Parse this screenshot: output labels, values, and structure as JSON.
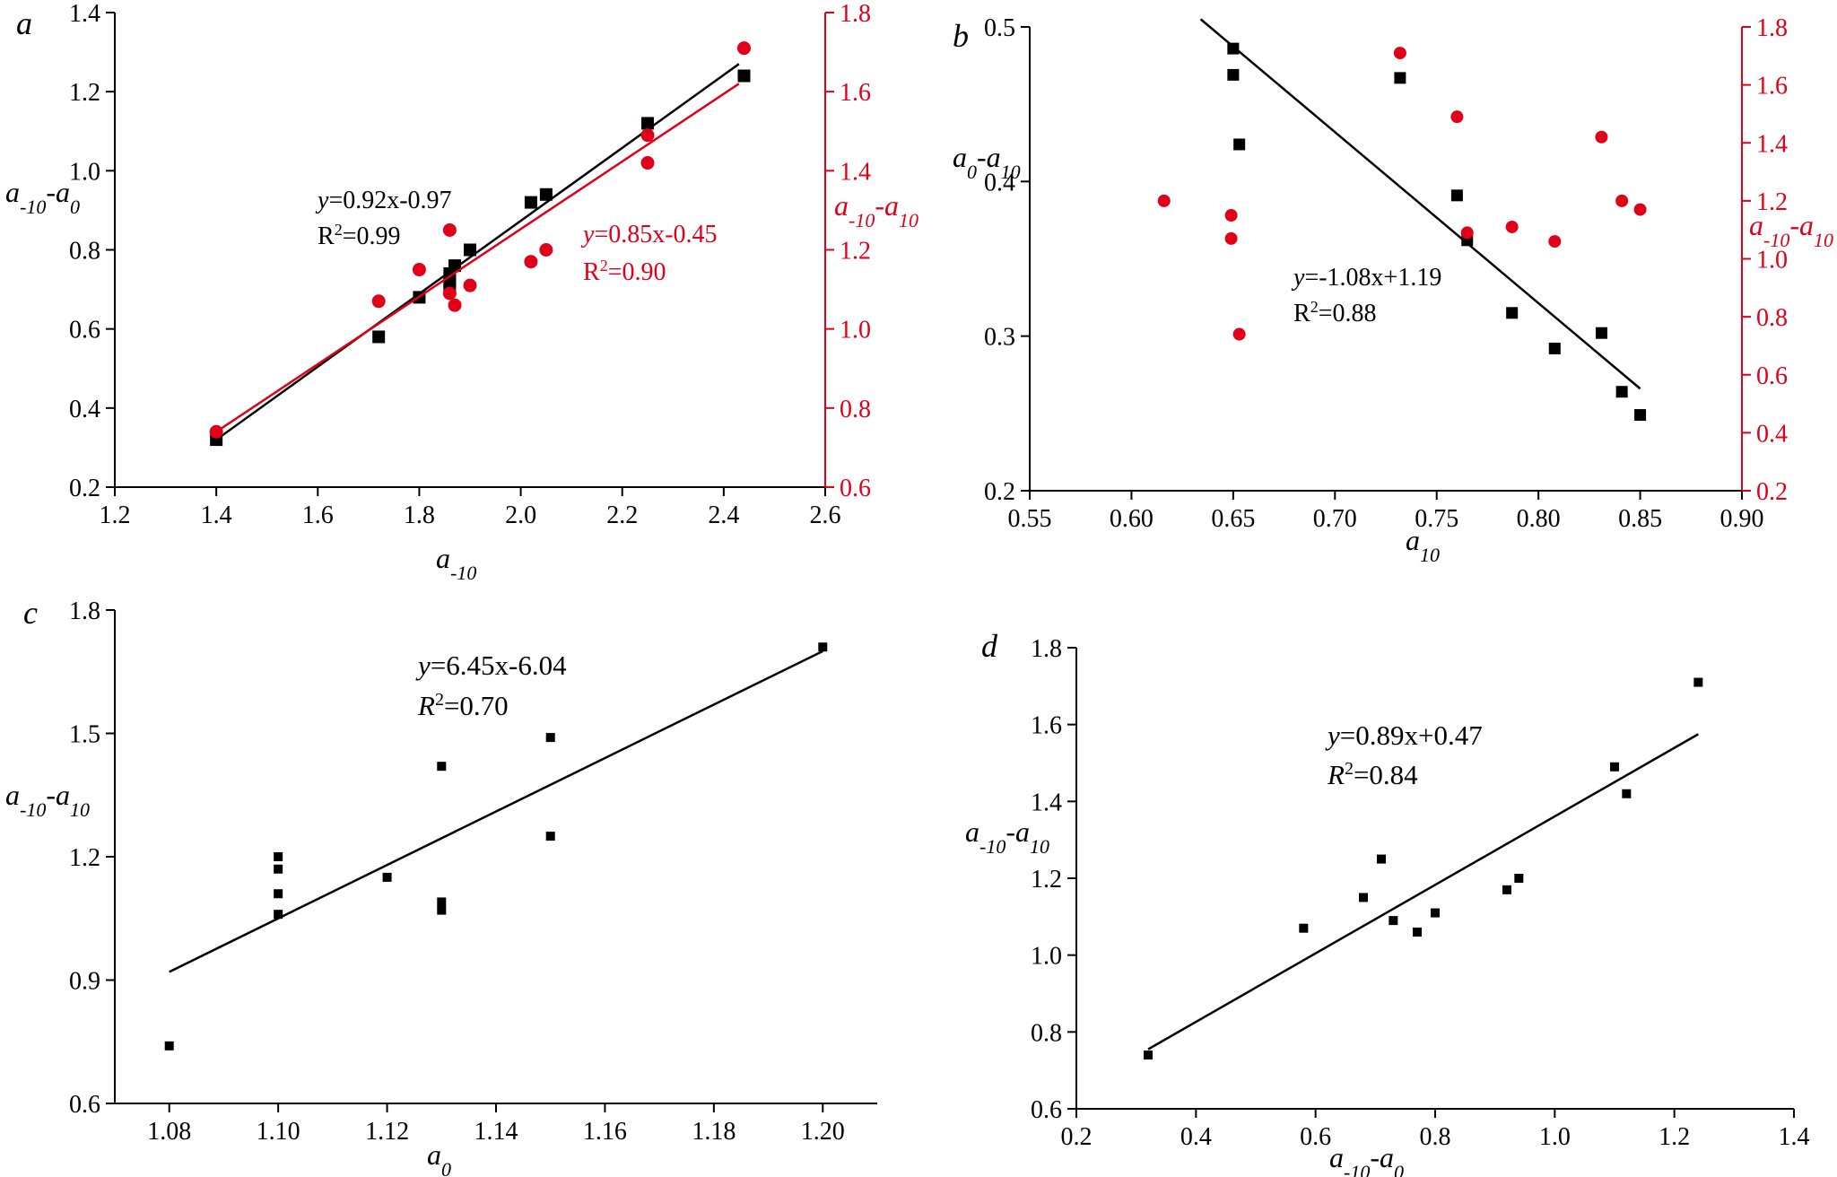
{
  "colors": {
    "primary": "#000000",
    "secondary": "#e0001a"
  },
  "chart_data": [
    {
      "id": "a",
      "type": "scatter",
      "panel_letter": "a",
      "xlabel": "a-10",
      "ylabel": "a-10-a0",
      "ylabel_right": "a-10-a10",
      "xlim": [
        1.2,
        2.6
      ],
      "ylim": [
        0.2,
        1.4
      ],
      "ylim_right": [
        0.6,
        1.8
      ],
      "xticks": [
        "1.2",
        "1.4",
        "1.6",
        "1.8",
        "2.0",
        "2.2",
        "2.4",
        "2.6"
      ],
      "yticks": [
        "0.2",
        "0.4",
        "0.6",
        "0.8",
        "1.0",
        "1.2",
        "1.4"
      ],
      "yticks_right": [
        "0.6",
        "0.8",
        "1.0",
        "1.2",
        "1.4",
        "1.6",
        "1.8"
      ],
      "series": [
        {
          "name": "a-10-a0",
          "axis": "left",
          "marker": "square",
          "color": "#000000",
          "x": [
            1.4,
            1.72,
            1.8,
            1.86,
            1.86,
            1.86,
            1.87,
            1.9,
            2.02,
            2.05,
            2.25,
            2.44
          ],
          "y": [
            0.32,
            0.58,
            0.68,
            0.71,
            0.72,
            0.74,
            0.76,
            0.8,
            0.92,
            0.94,
            1.12,
            1.24
          ],
          "fit": {
            "x": [
              1.4,
              2.43
            ],
            "y": [
              0.32,
              1.27
            ],
            "equation_prefix": "y",
            "equation_suffix": "=0.92x-0.97",
            "r2_prefix": "R",
            "r2_suffix": "=0.99"
          }
        },
        {
          "name": "a-10-a10",
          "axis": "right",
          "marker": "circle",
          "color": "#e0001a",
          "x": [
            1.4,
            1.72,
            1.8,
            1.86,
            1.86,
            1.87,
            1.9,
            2.02,
            2.05,
            2.25,
            2.25,
            2.44
          ],
          "y": [
            0.74,
            1.07,
            1.15,
            1.25,
            1.09,
            1.06,
            1.11,
            1.17,
            1.2,
            1.49,
            1.42,
            1.71
          ],
          "fit": {
            "x": [
              1.4,
              2.43
            ],
            "y": [
              0.74,
              1.62
            ],
            "equation_prefix": "y",
            "equation_suffix": "=0.85x-0.45",
            "r2_prefix": "R",
            "r2_suffix": "=0.90"
          }
        }
      ]
    },
    {
      "id": "b",
      "type": "scatter",
      "panel_letter": "b",
      "xlabel": "a10",
      "ylabel": "a0-a10",
      "ylabel_right": "a-10-a10",
      "xlim": [
        0.55,
        0.9
      ],
      "ylim": [
        0.2,
        0.5
      ],
      "ylim_right": [
        0.2,
        1.8
      ],
      "xticks": [
        "0.55",
        "0.60",
        "0.65",
        "0.70",
        "0.75",
        "0.80",
        "0.85",
        "0.90"
      ],
      "yticks": [
        "0.2",
        "0.3",
        "0.4",
        "0.5"
      ],
      "yticks_right": [
        "0.2",
        "0.4",
        "0.6",
        "0.8",
        "1.0",
        "1.2",
        "1.4",
        "1.6",
        "1.8"
      ],
      "series": [
        {
          "name": "a0-a10",
          "axis": "left",
          "marker": "square",
          "color": "#000000",
          "x": [
            0.65,
            0.65,
            0.653,
            0.732,
            0.76,
            0.765,
            0.787,
            0.808,
            0.831,
            0.841,
            0.85
          ],
          "y": [
            0.486,
            0.469,
            0.424,
            0.467,
            0.391,
            0.362,
            0.315,
            0.292,
            0.302,
            0.264,
            0.249
          ],
          "fit": {
            "x": [
              0.634,
              0.85
            ],
            "y": [
              0.505,
              0.266
            ],
            "equation_prefix": "y",
            "equation_suffix": "=-1.08x+1.19",
            "r2_prefix": "R",
            "r2_suffix": "=0.88"
          }
        },
        {
          "name": "a-10-a10",
          "axis": "right",
          "marker": "circle",
          "color": "#e0001a",
          "x": [
            0.616,
            0.649,
            0.649,
            0.653,
            0.732,
            0.76,
            0.765,
            0.787,
            0.808,
            0.831,
            0.841,
            0.85
          ],
          "y": [
            1.2,
            1.15,
            1.07,
            0.74,
            1.71,
            1.49,
            1.09,
            1.11,
            1.06,
            1.42,
            1.2,
            1.17
          ]
        }
      ]
    },
    {
      "id": "c",
      "type": "scatter",
      "panel_letter": "c",
      "xlabel": "a0",
      "ylabel": "a-10-a10",
      "xlim": [
        1.07,
        1.21
      ],
      "ylim": [
        0.6,
        1.8
      ],
      "xticks": [
        "1.08",
        "1.10",
        "1.12",
        "1.14",
        "1.16",
        "1.18",
        "1.20"
      ],
      "yticks": [
        "0.6",
        "0.9",
        "1.2",
        "1.5",
        "1.8"
      ],
      "series": [
        {
          "name": "a-10-a10",
          "axis": "left",
          "marker": "square",
          "color": "#000000",
          "x": [
            1.08,
            1.1,
            1.1,
            1.1,
            1.1,
            1.12,
            1.13,
            1.13,
            1.13,
            1.15,
            1.15,
            1.2
          ],
          "y": [
            0.74,
            1.2,
            1.17,
            1.11,
            1.06,
            1.15,
            1.42,
            1.09,
            1.07,
            1.49,
            1.25,
            1.71
          ],
          "fit": {
            "x": [
              1.08,
              1.2
            ],
            "y": [
              0.92,
              1.7
            ],
            "equation_prefix": "y",
            "equation_suffix": "=6.45x-6.04",
            "r2_prefix": "R",
            "r2_suffix": "=0.70"
          }
        }
      ]
    },
    {
      "id": "d",
      "type": "scatter",
      "panel_letter": "d",
      "xlabel": "a-10-a0",
      "ylabel": "a-10-a10",
      "xlim": [
        0.2,
        1.4
      ],
      "ylim": [
        0.6,
        1.8
      ],
      "xticks": [
        "0.2",
        "0.4",
        "0.6",
        "0.8",
        "1.0",
        "1.2",
        "1.4"
      ],
      "yticks": [
        "0.6",
        "0.8",
        "1.0",
        "1.2",
        "1.4",
        "1.6",
        "1.8"
      ],
      "series": [
        {
          "name": "a-10-a10",
          "axis": "left",
          "marker": "square",
          "color": "#000000",
          "x": [
            0.32,
            0.58,
            0.68,
            0.71,
            0.73,
            0.77,
            0.8,
            0.92,
            0.94,
            1.1,
            1.12,
            1.24
          ],
          "y": [
            0.74,
            1.07,
            1.15,
            1.25,
            1.09,
            1.06,
            1.11,
            1.17,
            1.2,
            1.49,
            1.42,
            1.71
          ],
          "fit": {
            "x": [
              0.32,
              1.24
            ],
            "y": [
              0.755,
              1.575
            ],
            "equation_prefix": "y",
            "equation_suffix": "=0.89x+0.47",
            "r2_prefix": "R",
            "r2_suffix": "=0.84"
          }
        }
      ]
    }
  ]
}
